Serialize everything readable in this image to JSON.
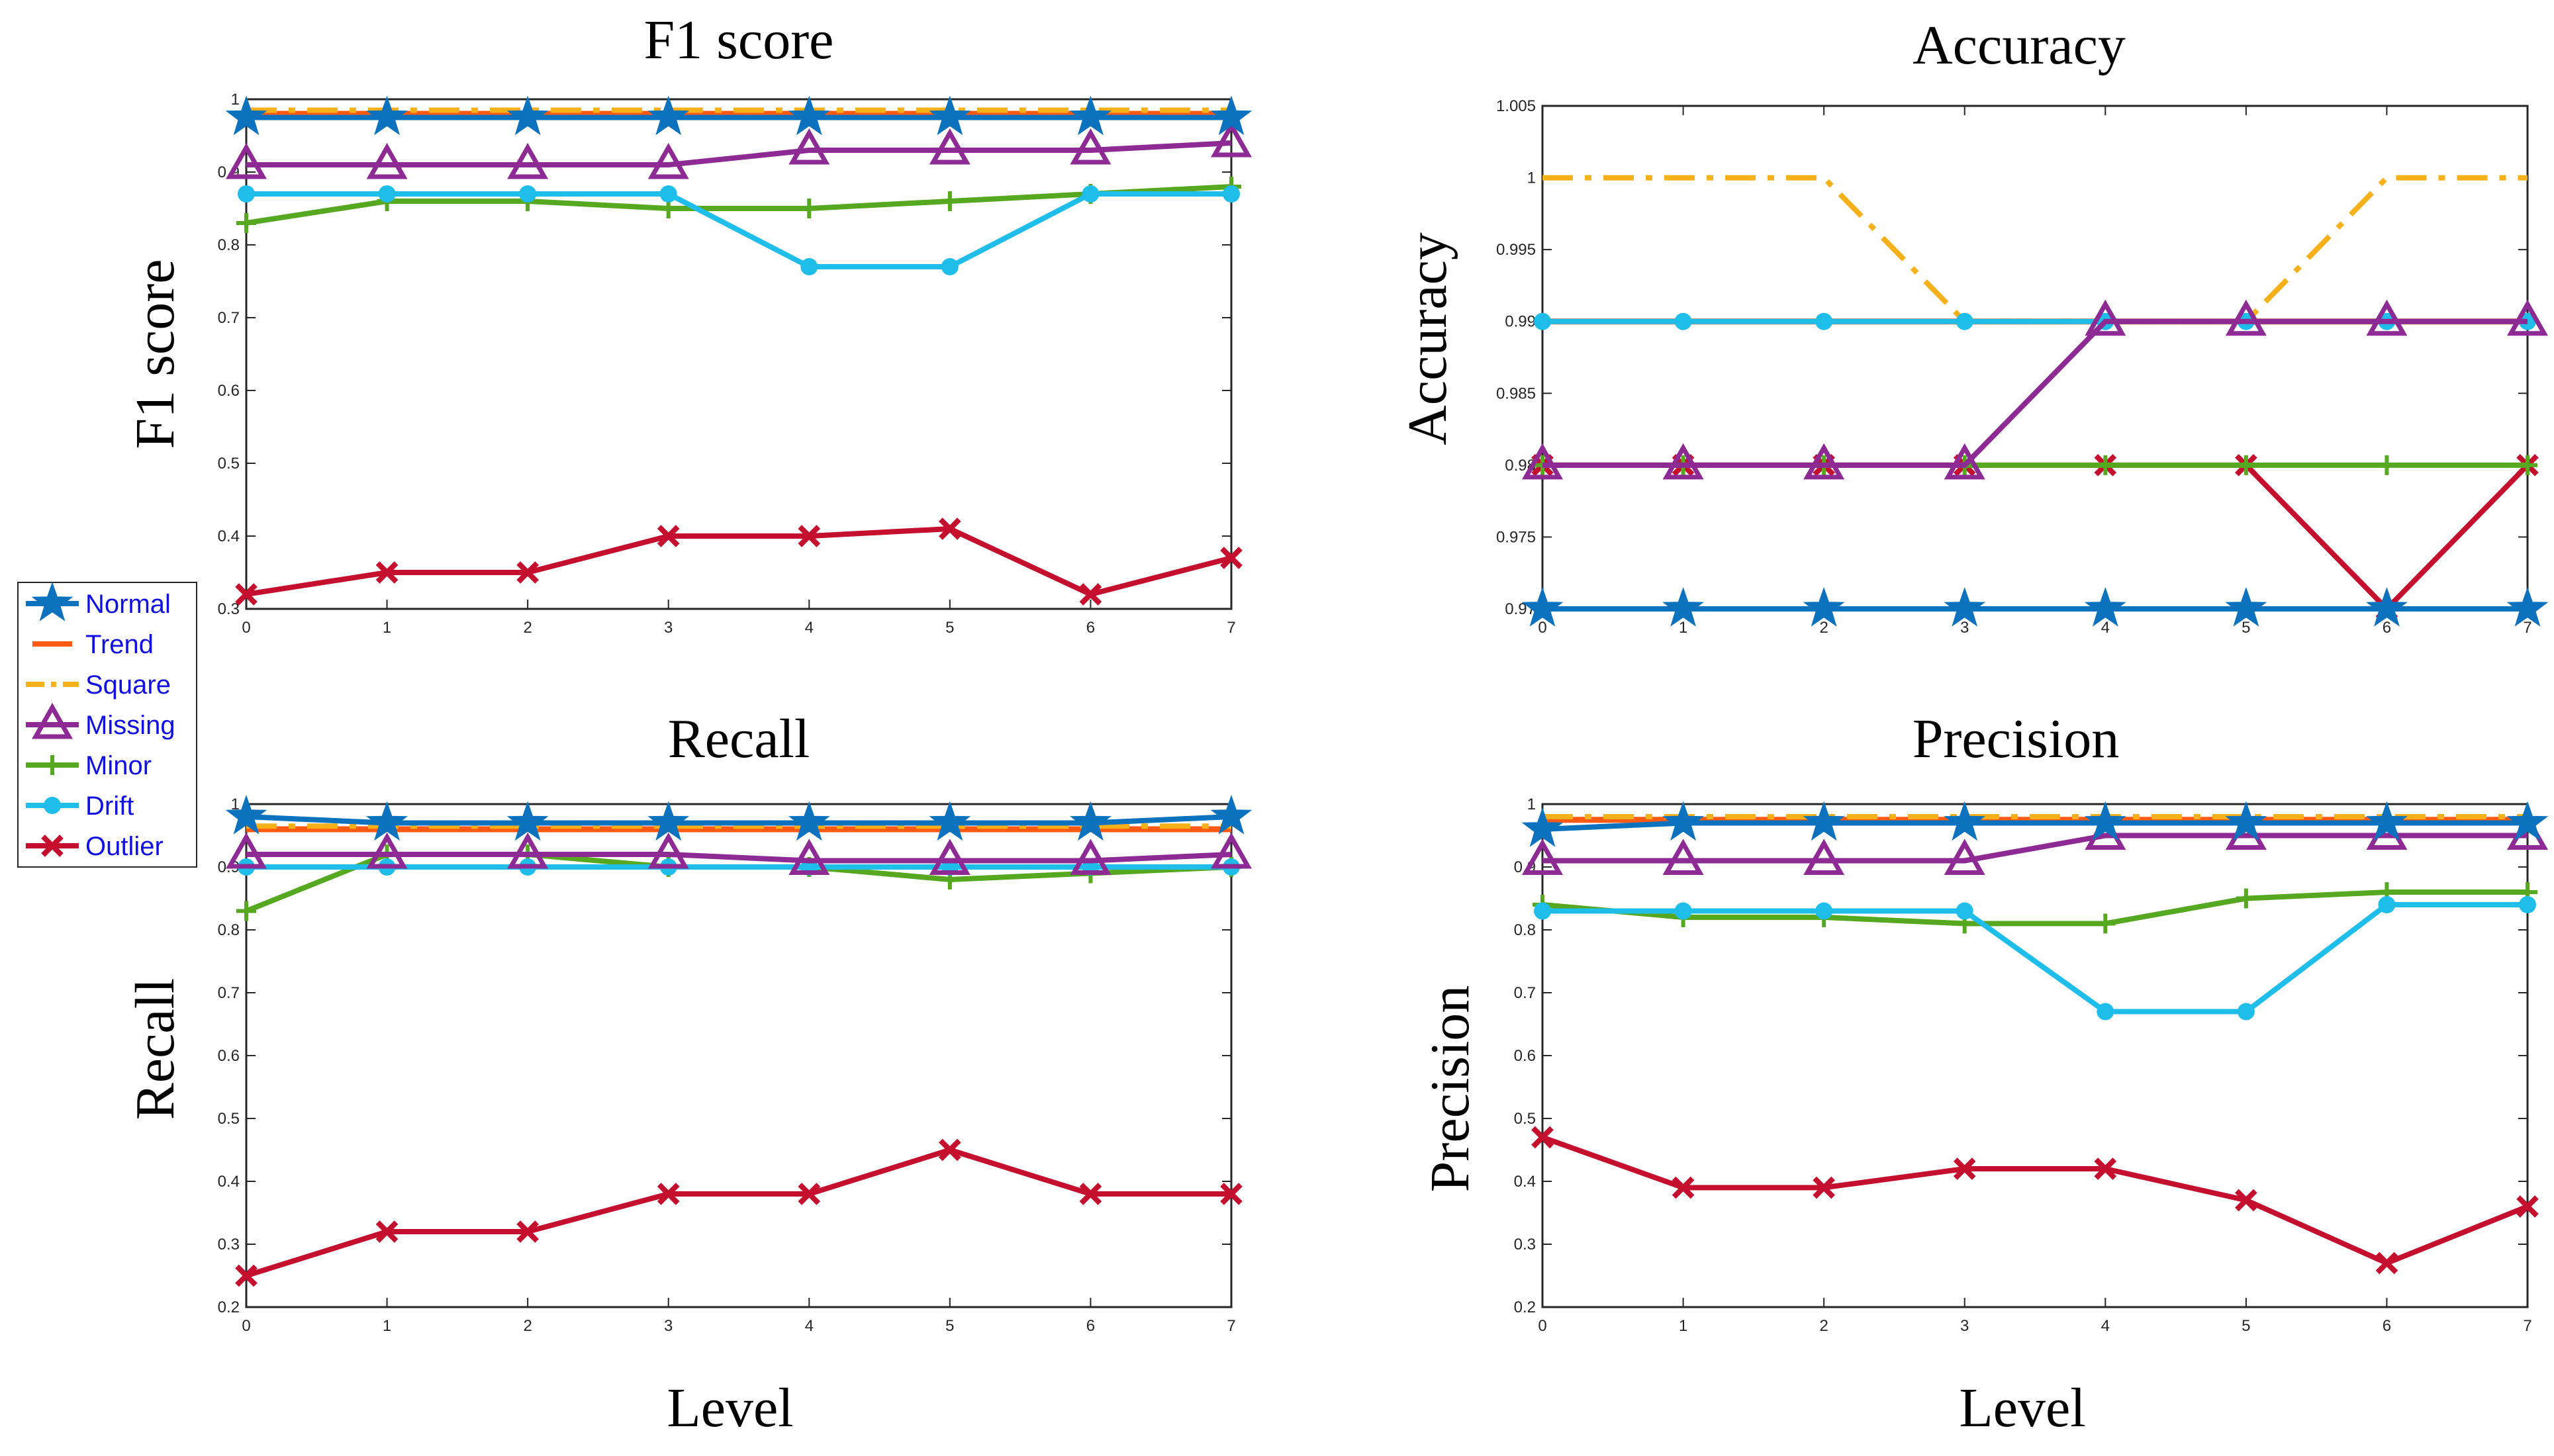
{
  "colors": {
    "Normal": "#0c72bd",
    "Trend": "#ff5a14",
    "Square": "#f5b01a",
    "Missing": "#8e2a94",
    "Minor": "#56a820",
    "Drift": "#1fbde9",
    "Outlier": "#c4102e"
  },
  "legend": [
    "Normal",
    "Trend",
    "Square",
    "Missing",
    "Minor",
    "Drift",
    "Outlier"
  ],
  "chart_data": [
    {
      "id": "f1",
      "type": "line",
      "title": "F1 score",
      "xlabel": "Level",
      "ylabel": "F1 score",
      "x": [
        0,
        1,
        2,
        3,
        4,
        5,
        6,
        7
      ],
      "xlim": [
        0,
        7
      ],
      "ylim": [
        0.3,
        1.0
      ],
      "yticks": [
        0.3,
        0.4,
        0.5,
        0.6,
        0.7,
        0.8,
        0.9,
        1
      ],
      "ytick_labels": [
        "0.3",
        "0.4",
        "0.5",
        "0.6",
        "0.7",
        "0.8",
        "0.9",
        "1"
      ],
      "series": [
        {
          "name": "Normal",
          "values": [
            0.975,
            0.975,
            0.975,
            0.975,
            0.975,
            0.975,
            0.975,
            0.975
          ]
        },
        {
          "name": "Trend",
          "values": [
            0.98,
            0.98,
            0.98,
            0.98,
            0.98,
            0.98,
            0.98,
            0.98
          ]
        },
        {
          "name": "Square",
          "values": [
            0.985,
            0.985,
            0.985,
            0.985,
            0.985,
            0.985,
            0.985,
            0.985
          ]
        },
        {
          "name": "Missing",
          "values": [
            0.91,
            0.91,
            0.91,
            0.91,
            0.93,
            0.93,
            0.93,
            0.94
          ]
        },
        {
          "name": "Minor",
          "values": [
            0.83,
            0.86,
            0.86,
            0.85,
            0.85,
            0.86,
            0.87,
            0.88
          ]
        },
        {
          "name": "Drift",
          "values": [
            0.87,
            0.87,
            0.87,
            0.87,
            0.77,
            0.77,
            0.87,
            0.87
          ]
        },
        {
          "name": "Outlier",
          "values": [
            0.32,
            0.35,
            0.35,
            0.4,
            0.4,
            0.41,
            0.32,
            0.37
          ]
        }
      ]
    },
    {
      "id": "acc",
      "type": "line",
      "title": "Accuracy",
      "xlabel": "",
      "ylabel": "Accuracy",
      "x": [
        0,
        1,
        2,
        3,
        4,
        5,
        6,
        7
      ],
      "xlim": [
        0,
        7
      ],
      "ylim": [
        0.97,
        1.005
      ],
      "yticks": [
        0.97,
        0.975,
        0.98,
        0.985,
        0.99,
        0.995,
        1,
        1.005
      ],
      "ytick_labels": [
        "0.97",
        "0.975",
        "0.98",
        "0.985",
        "0.99",
        "0.995",
        "1",
        "1.005"
      ],
      "series": [
        {
          "name": "Normal",
          "values": [
            0.97,
            0.97,
            0.97,
            0.97,
            0.97,
            0.97,
            0.97,
            0.97
          ]
        },
        {
          "name": "Trend",
          "values": [
            0.99,
            0.99,
            0.99,
            0.99,
            0.99,
            0.99,
            0.99,
            0.99
          ]
        },
        {
          "name": "Square",
          "values": [
            1.0,
            1.0,
            1.0,
            0.99,
            0.99,
            0.99,
            1.0,
            1.0
          ]
        },
        {
          "name": "Missing",
          "values": [
            0.98,
            0.98,
            0.98,
            0.98,
            0.99,
            0.99,
            0.99,
            0.99
          ]
        },
        {
          "name": "Minor",
          "values": [
            0.98,
            0.98,
            0.98,
            0.98,
            0.98,
            0.98,
            0.98,
            0.98
          ]
        },
        {
          "name": "Drift",
          "values": [
            0.99,
            0.99,
            0.99,
            0.99,
            0.99,
            0.99,
            0.99,
            0.99
          ]
        },
        {
          "name": "Outlier",
          "values": [
            0.98,
            0.98,
            0.98,
            0.98,
            0.98,
            0.98,
            0.97,
            0.98
          ]
        }
      ]
    },
    {
      "id": "rec",
      "type": "line",
      "title": "Recall",
      "xlabel": "Level",
      "ylabel": "Recall",
      "x": [
        0,
        1,
        2,
        3,
        4,
        5,
        6,
        7
      ],
      "xlim": [
        0,
        7
      ],
      "ylim": [
        0.2,
        1.0
      ],
      "yticks": [
        0.2,
        0.3,
        0.4,
        0.5,
        0.6,
        0.7,
        0.8,
        0.9,
        1
      ],
      "ytick_labels": [
        "0.2",
        "0.3",
        "0.4",
        "0.5",
        "0.6",
        "0.7",
        "0.8",
        "0.9",
        "1"
      ],
      "series": [
        {
          "name": "Normal",
          "values": [
            0.98,
            0.97,
            0.97,
            0.97,
            0.97,
            0.97,
            0.97,
            0.98
          ]
        },
        {
          "name": "Trend",
          "values": [
            0.96,
            0.96,
            0.96,
            0.96,
            0.96,
            0.96,
            0.96,
            0.96
          ]
        },
        {
          "name": "Square",
          "values": [
            0.965,
            0.965,
            0.965,
            0.965,
            0.965,
            0.965,
            0.965,
            0.965
          ]
        },
        {
          "name": "Missing",
          "values": [
            0.92,
            0.92,
            0.92,
            0.92,
            0.91,
            0.91,
            0.91,
            0.92
          ]
        },
        {
          "name": "Minor",
          "values": [
            0.83,
            0.92,
            0.92,
            0.9,
            0.9,
            0.88,
            0.89,
            0.9
          ]
        },
        {
          "name": "Drift",
          "values": [
            0.9,
            0.9,
            0.9,
            0.9,
            0.9,
            0.9,
            0.9,
            0.9
          ]
        },
        {
          "name": "Outlier",
          "values": [
            0.25,
            0.32,
            0.32,
            0.38,
            0.38,
            0.45,
            0.38,
            0.38
          ]
        }
      ]
    },
    {
      "id": "prec",
      "type": "line",
      "title": "Precision",
      "xlabel": "Level",
      "ylabel": "Precision",
      "x": [
        0,
        1,
        2,
        3,
        4,
        5,
        6,
        7
      ],
      "xlim": [
        0,
        7
      ],
      "ylim": [
        0.2,
        1.0
      ],
      "yticks": [
        0.2,
        0.3,
        0.4,
        0.5,
        0.6,
        0.7,
        0.8,
        0.9,
        1
      ],
      "ytick_labels": [
        "0.2",
        "0.3",
        "0.4",
        "0.5",
        "0.6",
        "0.7",
        "0.8",
        "0.9",
        "1"
      ],
      "series": [
        {
          "name": "Normal",
          "values": [
            0.96,
            0.97,
            0.97,
            0.97,
            0.97,
            0.97,
            0.97,
            0.97
          ]
        },
        {
          "name": "Trend",
          "values": [
            0.975,
            0.975,
            0.975,
            0.975,
            0.975,
            0.975,
            0.975,
            0.975
          ]
        },
        {
          "name": "Square",
          "values": [
            0.98,
            0.98,
            0.98,
            0.98,
            0.98,
            0.98,
            0.98,
            0.98
          ]
        },
        {
          "name": "Missing",
          "values": [
            0.91,
            0.91,
            0.91,
            0.91,
            0.95,
            0.95,
            0.95,
            0.95
          ]
        },
        {
          "name": "Minor",
          "values": [
            0.84,
            0.82,
            0.82,
            0.81,
            0.81,
            0.85,
            0.86,
            0.86
          ]
        },
        {
          "name": "Drift",
          "values": [
            0.83,
            0.83,
            0.83,
            0.83,
            0.67,
            0.67,
            0.84,
            0.84
          ]
        },
        {
          "name": "Outlier",
          "values": [
            0.47,
            0.39,
            0.39,
            0.42,
            0.42,
            0.37,
            0.27,
            0.36
          ]
        }
      ]
    }
  ]
}
